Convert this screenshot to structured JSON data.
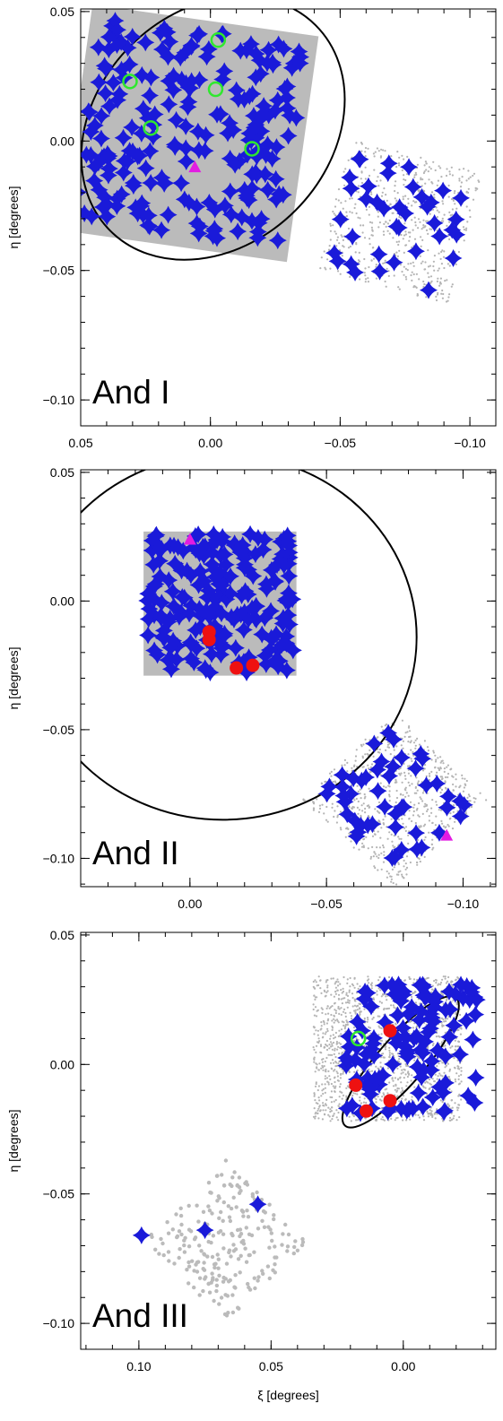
{
  "chart_data": [
    {
      "type": "scatter",
      "panel_name": "And I",
      "xlabel": "",
      "ylabel": "η [degrees]",
      "xlim": [
        0.05,
        -0.11
      ],
      "ylim": [
        -0.11,
        0.051
      ],
      "x_ticks": [
        {
          "v": 0.05,
          "t": "0.05"
        },
        {
          "v": 0.0,
          "t": "0.00"
        },
        {
          "v": -0.05,
          "t": "−0.05"
        },
        {
          "v": -0.1,
          "t": "−0.10"
        }
      ],
      "y_ticks": [
        {
          "v": 0.05,
          "t": "0.05"
        },
        {
          "v": 0.0,
          "t": "0.00"
        },
        {
          "v": -0.05,
          "t": "−0.05"
        },
        {
          "v": -0.1,
          "t": "−0.10"
        }
      ],
      "x_minor": 0.01,
      "y_minor": 0.01,
      "ellipse": {
        "cx": -0.001,
        "cy": 0.005,
        "a": 0.056,
        "b": 0.045,
        "angle_deg": 45,
        "color": "#000000"
      },
      "fields": [
        {
          "kind": "square",
          "center": [
            0.008,
            0.003
          ],
          "half": 0.044,
          "rot_deg": 8,
          "fill": "#bbbbbb"
        },
        {
          "kind": "cloud",
          "center": [
            -0.073,
            -0.031
          ],
          "half": 0.026,
          "rot_deg": 15,
          "n": 600,
          "color": "#b4b4b4"
        }
      ],
      "star_fields": [
        {
          "center": [
            0.008,
            0.003
          ],
          "half": 0.04,
          "rot_deg": 8,
          "n": 230
        },
        {
          "center": [
            -0.073,
            -0.031
          ],
          "half": 0.024,
          "rot_deg": 15,
          "n": 38
        }
      ],
      "marker_colors": {
        "star": "#1a1ad9",
        "circle": "#2ee82e",
        "triangle": "#e21ce2",
        "dot": "#ee1111"
      },
      "green_circles": [
        [
          0.031,
          0.023
        ],
        [
          0.023,
          0.005
        ],
        [
          -0.003,
          0.039
        ],
        [
          -0.002,
          0.02
        ],
        [
          -0.016,
          -0.003
        ]
      ],
      "magenta_triangles": [
        [
          0.006,
          -0.01
        ]
      ],
      "red_dots": []
    },
    {
      "type": "scatter",
      "panel_name": "And II",
      "xlabel": "",
      "ylabel": "η [degrees]",
      "xlim": [
        0.04,
        -0.112
      ],
      "ylim": [
        -0.111,
        0.051
      ],
      "x_ticks": [
        {
          "v": 0.0,
          "t": "0.00"
        },
        {
          "v": -0.05,
          "t": "−0.05"
        },
        {
          "v": -0.1,
          "t": "−0.10"
        }
      ],
      "y_ticks": [
        {
          "v": 0.05,
          "t": "0.05"
        },
        {
          "v": 0.0,
          "t": "0.00"
        },
        {
          "v": -0.05,
          "t": "−0.05"
        },
        {
          "v": -0.1,
          "t": "−0.10"
        }
      ],
      "x_minor": 0.01,
      "y_minor": 0.01,
      "ellipse": {
        "cx": -0.012,
        "cy": -0.014,
        "a": 0.071,
        "b": 0.071,
        "angle_deg": 0,
        "color": "#000000"
      },
      "fields": [
        {
          "kind": "square",
          "center": [
            -0.011,
            -0.001
          ],
          "half": 0.028,
          "rot_deg": 0,
          "fill": "#bbbbbb"
        },
        {
          "kind": "cloud",
          "center": [
            -0.075,
            -0.077
          ],
          "half": 0.024,
          "rot_deg": 45,
          "n": 800,
          "color": "#b4b4b4"
        }
      ],
      "star_fields": [
        {
          "center": [
            -0.011,
            -0.001
          ],
          "half": 0.027,
          "rot_deg": 0,
          "n": 210
        },
        {
          "center": [
            -0.075,
            -0.077
          ],
          "half": 0.022,
          "rot_deg": 45,
          "n": 48
        }
      ],
      "marker_colors": {
        "star": "#1a1ad9",
        "circle": "#2ee82e",
        "triangle": "#e21ce2",
        "dot": "#ee1111"
      },
      "green_circles": [],
      "magenta_triangles": [
        [
          0.0,
          0.024
        ],
        [
          -0.094,
          -0.091
        ]
      ],
      "red_dots": [
        [
          -0.007,
          -0.012
        ],
        [
          -0.007,
          -0.015
        ],
        [
          -0.017,
          -0.026
        ],
        [
          -0.023,
          -0.025
        ]
      ]
    },
    {
      "type": "scatter",
      "panel_name": "And III",
      "xlabel": "ξ [degrees]",
      "ylabel": "η [degrees]",
      "xlim": [
        0.122,
        -0.035
      ],
      "ylim": [
        -0.11,
        0.051
      ],
      "x_ticks": [
        {
          "v": 0.1,
          "t": "0.10"
        },
        {
          "v": 0.05,
          "t": "0.05"
        },
        {
          "v": 0.0,
          "t": "0.00"
        }
      ],
      "y_ticks": [
        {
          "v": 0.05,
          "t": "0.05"
        },
        {
          "v": 0.0,
          "t": "0.00"
        },
        {
          "v": -0.05,
          "t": "−0.05"
        },
        {
          "v": -0.1,
          "t": "−0.10"
        }
      ],
      "x_minor": 0.01,
      "y_minor": 0.01,
      "ellipse": {
        "cx": 0.001,
        "cy": 0.001,
        "a": 0.032,
        "b": 0.009,
        "angle_deg": 49,
        "color": "#000000"
      },
      "fields": [
        {
          "kind": "cloud",
          "center": [
            0.006,
            0.006
          ],
          "half": 0.028,
          "rot_deg": 0,
          "n": 1600,
          "color": "#b4b4b4"
        },
        {
          "kind": "cloud",
          "center": [
            0.067,
            -0.068
          ],
          "half": 0.022,
          "rot_deg": 45,
          "n": 230,
          "color": "#bbbbbb"
        }
      ],
      "star_fields": [
        {
          "center": [
            -0.003,
            0.006
          ],
          "half": 0.025,
          "rot_deg": 0,
          "n": 120
        }
      ],
      "extra_stars": [
        [
          0.099,
          -0.066
        ],
        [
          0.075,
          -0.064
        ],
        [
          0.055,
          -0.054
        ]
      ],
      "marker_colors": {
        "star": "#1a1ad9",
        "circle": "#2ee82e",
        "triangle": "#e21ce2",
        "dot": "#ee1111"
      },
      "green_circles": [
        [
          0.017,
          0.01
        ]
      ],
      "magenta_triangles": [],
      "red_dots": [
        [
          0.005,
          0.013
        ],
        [
          0.018,
          -0.008
        ],
        [
          0.014,
          -0.018
        ],
        [
          0.005,
          -0.014
        ]
      ]
    }
  ]
}
